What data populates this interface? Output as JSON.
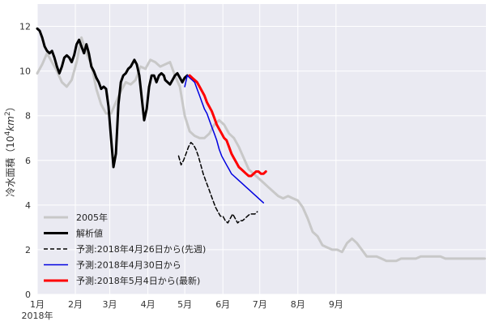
{
  "chart_data": {
    "type": "line",
    "ylabel_main": "冷水面積（10",
    "ylabel_sup": "4",
    "ylabel_unit": "km",
    "ylabel_unit_sup": "2",
    "ylabel_close": "）",
    "xlabel_year": "2018年",
    "xlim": [
      0,
      365
    ],
    "ylim": [
      0,
      13
    ],
    "yticks": [
      0,
      2,
      4,
      6,
      8,
      10,
      12
    ],
    "xticks": [
      {
        "pos": 0,
        "label": "1月"
      },
      {
        "pos": 31,
        "label": "2月"
      },
      {
        "pos": 59,
        "label": "3月"
      },
      {
        "pos": 90,
        "label": "4月"
      },
      {
        "pos": 120,
        "label": "5月"
      },
      {
        "pos": 151,
        "label": "6月"
      },
      {
        "pos": 181,
        "label": "7月"
      },
      {
        "pos": 212,
        "label": "8月"
      },
      {
        "pos": 243,
        "label": "9月"
      }
    ],
    "grid": true,
    "legend_position": "lower-left",
    "series": [
      {
        "name": "2005年",
        "color": "#c8c8c8",
        "width": 3,
        "dash": "",
        "x": [
          0,
          4,
          8,
          12,
          16,
          20,
          24,
          28,
          32,
          36,
          40,
          44,
          48,
          52,
          56,
          60,
          64,
          68,
          72,
          76,
          80,
          84,
          88,
          92,
          96,
          100,
          104,
          108,
          112,
          116,
          120,
          124,
          128,
          132,
          136,
          140,
          144,
          148,
          152,
          156,
          160,
          164,
          168,
          172,
          176,
          180,
          184,
          188,
          192,
          196,
          200,
          204,
          208,
          212,
          216,
          220,
          224,
          228,
          232,
          236,
          240,
          244,
          248,
          252,
          256,
          260,
          264,
          268,
          272,
          276,
          280,
          284,
          288,
          292,
          296,
          300,
          304,
          308,
          312,
          316,
          320,
          324,
          328,
          332,
          336,
          340,
          344,
          348,
          352,
          356,
          360,
          364
        ],
        "y": [
          9.9,
          10.3,
          10.8,
          10.4,
          10.0,
          9.5,
          9.3,
          9.6,
          10.4,
          11.5,
          10.8,
          10.3,
          9.2,
          8.5,
          8.1,
          8.1,
          8.6,
          9.1,
          9.5,
          9.4,
          9.6,
          10.2,
          10.1,
          10.5,
          10.4,
          10.2,
          10.3,
          10.4,
          9.8,
          9.3,
          8.0,
          7.3,
          7.1,
          7.0,
          7.0,
          7.2,
          7.6,
          7.8,
          7.6,
          7.2,
          7.0,
          6.6,
          6.1,
          5.6,
          5.4,
          5.2,
          5.0,
          4.8,
          4.6,
          4.4,
          4.3,
          4.4,
          4.3,
          4.2,
          3.9,
          3.4,
          2.8,
          2.6,
          2.2,
          2.1,
          2.0,
          2.0,
          1.9,
          2.3,
          2.5,
          2.3,
          2.0,
          1.7,
          1.7,
          1.7,
          1.6,
          1.5,
          1.5,
          1.5,
          1.6,
          1.6,
          1.6,
          1.6,
          1.7,
          1.7,
          1.7,
          1.7,
          1.7,
          1.6,
          1.6,
          1.6,
          1.6,
          1.6,
          1.6,
          1.6,
          1.6,
          1.6
        ]
      },
      {
        "name": "解析値",
        "color": "#000000",
        "width": 3,
        "dash": "",
        "x": [
          0,
          2,
          4,
          6,
          8,
          10,
          12,
          14,
          16,
          18,
          20,
          22,
          24,
          26,
          28,
          30,
          32,
          34,
          36,
          38,
          40,
          42,
          44,
          46,
          48,
          50,
          52,
          54,
          56,
          58,
          60,
          62,
          64,
          66,
          68,
          70,
          72,
          74,
          76,
          78,
          79,
          81,
          83,
          85,
          87,
          89,
          91,
          93,
          95,
          97,
          99,
          101,
          103,
          104,
          106,
          108,
          110,
          112,
          114,
          116,
          118,
          120,
          122
        ],
        "y": [
          11.9,
          11.8,
          11.5,
          11.1,
          10.9,
          10.8,
          10.9,
          10.6,
          10.2,
          9.9,
          10.2,
          10.6,
          10.7,
          10.6,
          10.4,
          10.7,
          11.2,
          11.4,
          11.1,
          10.8,
          11.2,
          10.8,
          10.2,
          10.0,
          9.7,
          9.5,
          9.2,
          9.3,
          9.2,
          8.4,
          7.0,
          5.7,
          6.3,
          8.5,
          9.5,
          9.8,
          9.9,
          10.1,
          10.2,
          10.4,
          10.5,
          10.3,
          9.8,
          8.8,
          7.8,
          8.3,
          9.3,
          9.8,
          9.8,
          9.5,
          9.8,
          9.9,
          9.8,
          9.6,
          9.5,
          9.4,
          9.6,
          9.8,
          9.9,
          9.7,
          9.5,
          9.7,
          9.8
        ]
      },
      {
        "name": "予測:2018年4月26日から(先週)",
        "color": "#000000",
        "width": 1.5,
        "dash": "5,3",
        "x": [
          115,
          117,
          119,
          121,
          123,
          125,
          127,
          129,
          131,
          133,
          135,
          137,
          139,
          141,
          143,
          145,
          147,
          149,
          151,
          153,
          155,
          157,
          159,
          161,
          163,
          165,
          167,
          169,
          171,
          173,
          175,
          177,
          179
        ],
        "y": [
          6.2,
          5.8,
          6.0,
          6.3,
          6.6,
          6.8,
          6.7,
          6.5,
          6.2,
          5.8,
          5.4,
          5.1,
          4.8,
          4.5,
          4.2,
          3.9,
          3.7,
          3.5,
          3.5,
          3.3,
          3.2,
          3.4,
          3.6,
          3.4,
          3.2,
          3.3,
          3.3,
          3.4,
          3.5,
          3.6,
          3.6,
          3.6,
          3.7
        ]
      },
      {
        "name": "予測:2018年4月30日から",
        "color": "#0000e0",
        "width": 1.5,
        "dash": "",
        "x": [
          120,
          122,
          124,
          126,
          128,
          130,
          132,
          134,
          136,
          138,
          140,
          142,
          144,
          146,
          148,
          150,
          152,
          154,
          156,
          158,
          160,
          162,
          164,
          166,
          168,
          170,
          172,
          174,
          176,
          178,
          180,
          182,
          184
        ],
        "y": [
          9.3,
          9.8,
          9.7,
          9.6,
          9.5,
          9.2,
          8.9,
          8.6,
          8.3,
          8.1,
          7.8,
          7.5,
          7.2,
          6.9,
          6.5,
          6.2,
          6.0,
          5.8,
          5.6,
          5.4,
          5.3,
          5.2,
          5.1,
          5.0,
          4.9,
          4.8,
          4.7,
          4.6,
          4.5,
          4.4,
          4.3,
          4.2,
          4.1
        ]
      },
      {
        "name": "予測:2018年5月4日から(最新)",
        "color": "#ff0000",
        "width": 3,
        "dash": "",
        "x": [
          124,
          126,
          128,
          130,
          132,
          134,
          136,
          138,
          140,
          142,
          144,
          146,
          148,
          150,
          152,
          154,
          156,
          158,
          160,
          162,
          164,
          166,
          168,
          170,
          172,
          174,
          176,
          178,
          180,
          182,
          184,
          186
        ],
        "y": [
          9.8,
          9.7,
          9.6,
          9.5,
          9.3,
          9.1,
          8.9,
          8.6,
          8.4,
          8.2,
          7.9,
          7.6,
          7.4,
          7.2,
          7.0,
          6.9,
          6.6,
          6.3,
          6.1,
          5.9,
          5.7,
          5.6,
          5.5,
          5.4,
          5.3,
          5.3,
          5.4,
          5.5,
          5.5,
          5.4,
          5.4,
          5.5
        ]
      }
    ]
  }
}
